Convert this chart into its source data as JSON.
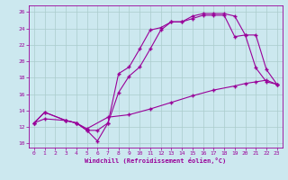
{
  "bg_color": "#cce8ef",
  "line_color": "#990099",
  "grid_color": "#aacccc",
  "xlabel": "Windchill (Refroidissement éolien,°C)",
  "xlim": [
    -0.5,
    23.5
  ],
  "ylim": [
    9.5,
    26.8
  ],
  "xticks": [
    0,
    1,
    2,
    3,
    4,
    5,
    6,
    7,
    8,
    9,
    10,
    11,
    12,
    13,
    14,
    15,
    16,
    17,
    18,
    19,
    20,
    21,
    22,
    23
  ],
  "yticks": [
    10,
    12,
    14,
    16,
    18,
    20,
    22,
    24,
    26
  ],
  "line1_x": [
    0,
    1,
    3,
    4,
    5,
    6,
    7,
    8,
    9,
    10,
    11,
    12,
    13,
    14,
    15,
    16,
    17,
    18,
    19,
    20,
    21,
    22,
    23
  ],
  "line1_y": [
    12.5,
    13.8,
    12.8,
    12.5,
    11.6,
    11.6,
    12.5,
    18.5,
    19.3,
    21.5,
    23.8,
    24.1,
    24.8,
    24.8,
    25.5,
    25.8,
    25.8,
    25.8,
    25.5,
    23.2,
    19.2,
    17.5,
    17.2
  ],
  "line2_x": [
    0,
    1,
    3,
    4,
    5,
    6,
    7,
    8,
    9,
    10,
    11,
    12,
    13,
    14,
    15,
    16,
    17,
    18,
    19,
    20,
    21,
    22,
    23
  ],
  "line2_y": [
    12.5,
    13.8,
    12.8,
    12.5,
    11.6,
    10.3,
    12.5,
    16.2,
    18.2,
    19.3,
    21.5,
    23.8,
    24.8,
    24.8,
    25.2,
    25.6,
    25.6,
    25.6,
    23.0,
    23.2,
    23.2,
    19.0,
    17.2
  ],
  "line3_x": [
    0,
    1,
    3,
    4,
    5,
    7,
    9,
    11,
    13,
    15,
    17,
    19,
    20,
    21,
    22,
    23
  ],
  "line3_y": [
    12.5,
    13.0,
    12.8,
    12.5,
    11.8,
    13.2,
    13.5,
    14.2,
    15.0,
    15.8,
    16.5,
    17.0,
    17.3,
    17.5,
    17.7,
    17.2
  ]
}
